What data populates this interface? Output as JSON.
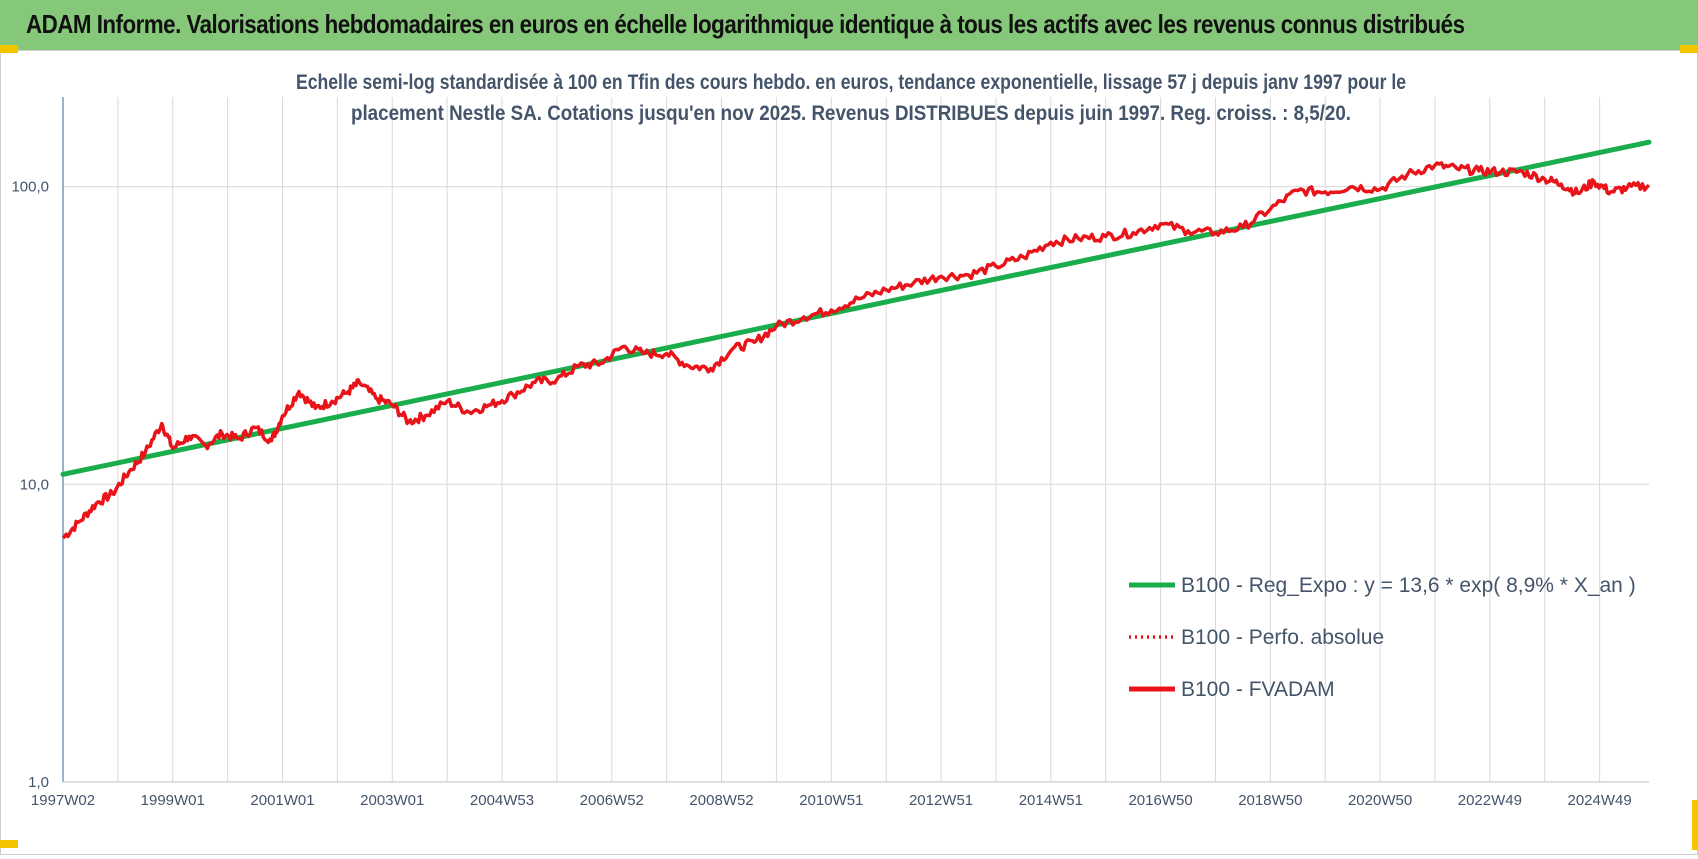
{
  "banner": {
    "title": "ADAM Informe. Valorisations hebdomadaires en euros en échelle logarithmique identique à tous les actifs avec les revenus connus distribués"
  },
  "colors": {
    "banner_bg": "#86c87a",
    "trend": "#1aad4b",
    "fvadam": "#e8141a",
    "perf": "#e8141a",
    "text": "#44546a",
    "grid": "#d9d9d9",
    "corner": "#f5c400"
  },
  "chart_data": {
    "type": "line",
    "title_lines": [
      "Echelle semi-log standardisée à 100 en Tfin des cours hebdo. en euros, tendance exponentielle, lissage 57 j depuis janv 1997 pour le",
      "placement Nestle SA. Cotations jusqu'en nov 2025. Revenus DISTRIBUES depuis juin 1997.  Reg. croiss. : 8,5/20."
    ],
    "y_scale": "log",
    "ylim": [
      1,
      200
    ],
    "y_ticks": [
      1,
      10,
      100
    ],
    "y_tick_labels": [
      "1,0",
      "10,0",
      "100,0"
    ],
    "xlim": [
      1997.0,
      2025.9
    ],
    "x_ticks": [
      1997.0,
      1999.0,
      2001.0,
      2003.0,
      2005.0,
      2007.0,
      2009.0,
      2011.0,
      2013.0,
      2015.0,
      2017.0,
      2019.0,
      2021.0,
      2023.0,
      2025.0
    ],
    "x_tick_labels": [
      "1997W02",
      "1999W01",
      "2001W01",
      "2003W01",
      "2004W53",
      "2006W52",
      "2008W52",
      "2010W51",
      "2012W51",
      "2014W51",
      "2016W50",
      "2018W50",
      "2020W50",
      "2022W49",
      "2024W49"
    ],
    "grid": true,
    "legend_position": "bottom-right",
    "series": [
      {
        "name": "B100 - Reg_Expo : y = 13,6 * exp( 8,9% *  X_an )",
        "style": "solid-thick",
        "color": "#1aad4b",
        "x": [
          1997.0,
          2025.9
        ],
        "values": [
          10.8,
          141
        ]
      },
      {
        "name": "B100 - Perfo. absolue",
        "style": "dotted",
        "color": "#e8141a",
        "x": [],
        "values": []
      },
      {
        "name": "B100 - FVADAM",
        "style": "solid",
        "color": "#e8141a",
        "x": [
          1997.0,
          1997.3,
          1997.6,
          1997.9,
          1998.2,
          1998.5,
          1998.8,
          1999.0,
          1999.3,
          1999.6,
          1999.9,
          2000.2,
          2000.5,
          2000.8,
          2001.0,
          2001.3,
          2001.6,
          2001.9,
          2002.2,
          2002.4,
          2002.7,
          2003.0,
          2003.3,
          2003.6,
          2004.0,
          2004.4,
          2004.8,
          2005.2,
          2005.6,
          2006.0,
          2006.4,
          2006.8,
          2007.2,
          2007.6,
          2008.0,
          2008.4,
          2008.8,
          2009.2,
          2009.6,
          2010.0,
          2010.5,
          2011.0,
          2011.5,
          2012.0,
          2012.5,
          2013.0,
          2013.5,
          2014.0,
          2014.5,
          2015.0,
          2015.5,
          2016.0,
          2016.5,
          2017.0,
          2017.5,
          2018.0,
          2018.5,
          2019.0,
          2019.5,
          2020.0,
          2020.5,
          2021.0,
          2021.5,
          2022.0,
          2022.4,
          2022.8,
          2023.2,
          2023.6,
          2024.0,
          2024.3,
          2024.6,
          2024.9,
          2025.2,
          2025.5,
          2025.9
        ],
        "values": [
          6.6,
          7.5,
          8.6,
          9.3,
          11.0,
          12.8,
          16.0,
          13.2,
          14.5,
          13.5,
          14.8,
          14.2,
          15.5,
          14.0,
          17.0,
          20.5,
          18.0,
          19.0,
          20.5,
          22.0,
          19.5,
          18.5,
          16.2,
          17.0,
          19.0,
          17.5,
          18.5,
          20.0,
          22.0,
          22.5,
          25.0,
          25.5,
          29.0,
          27.5,
          27.5,
          25.0,
          24.5,
          28.5,
          30.0,
          34.0,
          36.5,
          38.5,
          42.0,
          45.0,
          47.5,
          50.0,
          50.5,
          54.0,
          58.0,
          65.0,
          67.0,
          68.0,
          70.0,
          75.0,
          71.0,
          70.0,
          73.0,
          84.0,
          97.0,
          96.0,
          100.0,
          98.0,
          110.0,
          118.0,
          115.0,
          113.0,
          112.0,
          112.0,
          106.0,
          102.0,
          95.0,
          104.0,
          96.0,
          99.0,
          101.0
        ]
      }
    ]
  }
}
